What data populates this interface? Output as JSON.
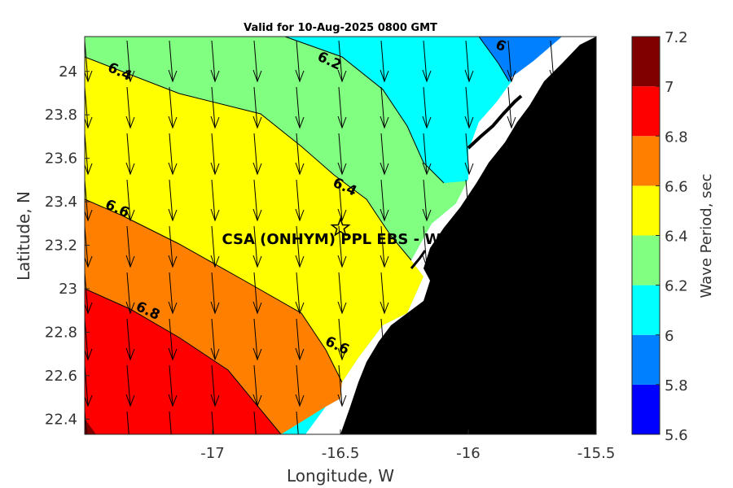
{
  "title": "Valid for 10-Aug-2025 0800 GMT",
  "xlabel": "Longitude, W",
  "ylabel": "Latitude, N",
  "x_ticks": [
    {
      "value": -17,
      "label": "-17"
    },
    {
      "value": -16.5,
      "label": "-16.5"
    },
    {
      "value": -16,
      "label": "-16"
    },
    {
      "value": -15.5,
      "label": "-15.5"
    }
  ],
  "y_ticks": [
    {
      "value": 22.4,
      "label": "22.4"
    },
    {
      "value": 22.6,
      "label": "22.6"
    },
    {
      "value": 22.8,
      "label": "22.8"
    },
    {
      "value": 23,
      "label": "23"
    },
    {
      "value": 23.2,
      "label": "23.2"
    },
    {
      "value": 23.4,
      "label": "23.4"
    },
    {
      "value": 23.6,
      "label": "23.6"
    },
    {
      "value": 23.8,
      "label": "23.8"
    },
    {
      "value": 24,
      "label": "24"
    }
  ],
  "colorbar": {
    "title": "Wave Period, sec",
    "ticks": [
      "7.2",
      "7",
      "6.8",
      "6.6",
      "6.4",
      "6.2",
      "6",
      "5.8",
      "5.6"
    ],
    "bands": [
      {
        "range": [
          5.6,
          5.8
        ],
        "color": "#0000ff"
      },
      {
        "range": [
          5.8,
          6.0
        ],
        "color": "#0080ff"
      },
      {
        "range": [
          6.0,
          6.2
        ],
        "color": "#00ffff"
      },
      {
        "range": [
          6.2,
          6.4
        ],
        "color": "#80ff80"
      },
      {
        "range": [
          6.4,
          6.6
        ],
        "color": "#ffff00"
      },
      {
        "range": [
          6.6,
          6.8
        ],
        "color": "#ff8000"
      },
      {
        "range": [
          6.8,
          7.0
        ],
        "color": "#ff0000"
      },
      {
        "range": [
          7.0,
          7.2
        ],
        "color": "#800000"
      }
    ]
  },
  "contour_labels": [
    {
      "text": "6.4",
      "lon": -17.37,
      "lat": 23.98
    },
    {
      "text": "6.2",
      "lon": -16.55,
      "lat": 24.03
    },
    {
      "text": "6",
      "lon": -15.88,
      "lat": 24.1
    },
    {
      "text": "6.4",
      "lon": -16.49,
      "lat": 23.45
    },
    {
      "text": "6.6",
      "lon": -17.38,
      "lat": 23.35
    },
    {
      "text": "6.8",
      "lon": -17.26,
      "lat": 22.88
    },
    {
      "text": "6.6",
      "lon": -16.52,
      "lat": 22.72
    }
  ],
  "site": {
    "label": "CSA (ONHYM) PPL EBS  - Wes",
    "lon": -16.5,
    "lat": 23.28
  },
  "land_color": "#000000",
  "arrow_color": "#000000"
}
